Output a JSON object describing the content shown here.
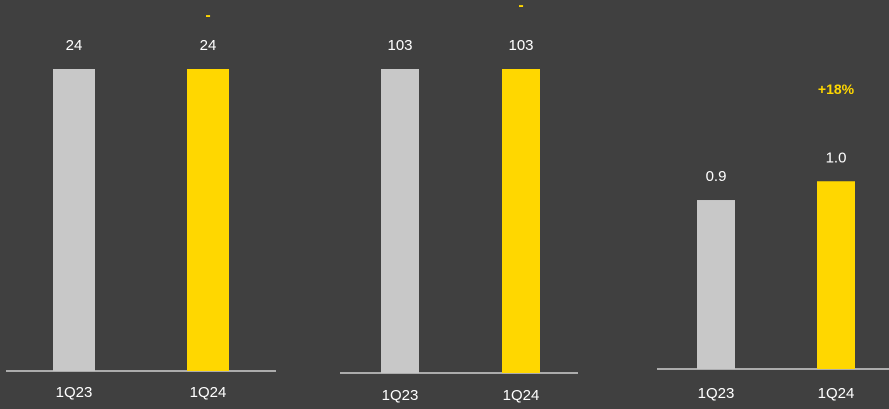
{
  "colors": {
    "background": "#404040",
    "prior_bar": "#c8c8c8",
    "current_bar": "#ffd700",
    "change_text": "#ffd700",
    "label_text": "#ffffff",
    "axis": "#d0d0d0"
  },
  "chart_data": [
    {
      "type": "bar",
      "categories": [
        "1Q23",
        "1Q24"
      ],
      "values": [
        24,
        24
      ],
      "value_labels": [
        "24",
        "24"
      ],
      "change_label": "-",
      "ylim": [
        0,
        24
      ]
    },
    {
      "type": "bar",
      "categories": [
        "1Q23",
        "1Q24"
      ],
      "values": [
        103,
        103
      ],
      "value_labels": [
        "103",
        "103"
      ],
      "change_label": "-",
      "ylim": [
        0,
        103
      ]
    },
    {
      "type": "bar",
      "categories": [
        "1Q23",
        "1Q24"
      ],
      "values": [
        0.9,
        1.0
      ],
      "value_labels": [
        "0.9",
        "1.0"
      ],
      "change_label": "+18%",
      "ylim": [
        0,
        1.55
      ]
    }
  ]
}
